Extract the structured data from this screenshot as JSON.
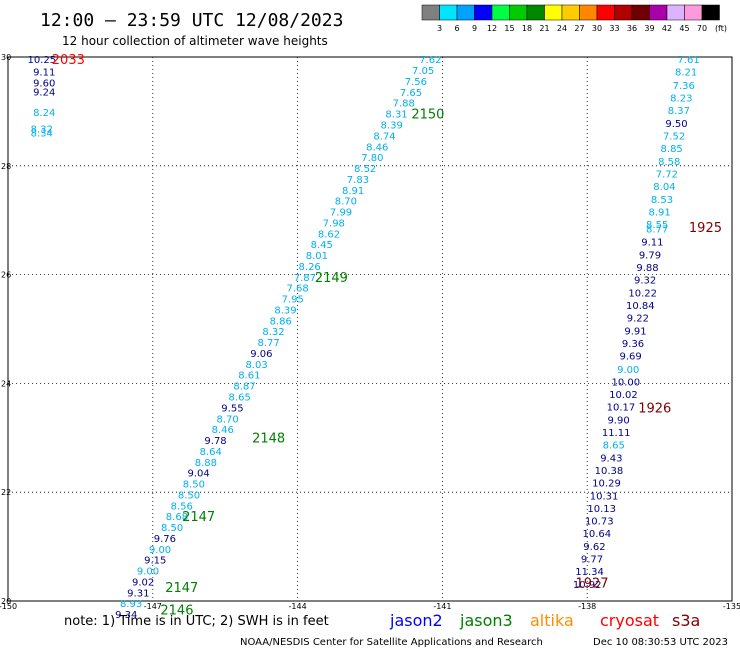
{
  "header": {
    "title": "12:00 — 23:59 UTC 12/08/2023",
    "subtitle": "12 hour collection of altimeter wave heights"
  },
  "legend": {
    "unit": "(ft)",
    "bins": [
      {
        "label": "3",
        "color": "#808080"
      },
      {
        "label": "6",
        "color": "#00e5ff"
      },
      {
        "label": "9",
        "color": "#00a2ff"
      },
      {
        "label": "12",
        "color": "#0000ff"
      },
      {
        "label": "15",
        "color": "#00ff44"
      },
      {
        "label": "18",
        "color": "#00cc00"
      },
      {
        "label": "21",
        "color": "#008800"
      },
      {
        "label": "24",
        "color": "#ffff00"
      },
      {
        "label": "27",
        "color": "#ffcc00"
      },
      {
        "label": "30",
        "color": "#ff8800"
      },
      {
        "label": "33",
        "color": "#ff0000"
      },
      {
        "label": "36",
        "color": "#b20000"
      },
      {
        "label": "39",
        "color": "#700000"
      },
      {
        "label": "42",
        "color": "#aa00aa"
      },
      {
        "label": "45",
        "color": "#ddb3ff"
      },
      {
        "label": "70",
        "color": "#ff99dd"
      },
      {
        "label": "",
        "color": "#000000"
      }
    ]
  },
  "chart_data": {
    "type": "scatter",
    "xlim": [
      -150,
      -135
    ],
    "ylim": [
      20,
      30
    ],
    "x_ticks": [
      "-150",
      "-147",
      "-144",
      "-141",
      "-138",
      "-135"
    ],
    "y_ticks": [
      "20",
      "22",
      "24",
      "26",
      "28",
      "30"
    ],
    "grid": true,
    "colors": {
      "sky": "#00b0f0",
      "navy": "#00008b",
      "green": "#008000",
      "red": "#ff0000",
      "darkred": "#800000"
    },
    "tracks": [
      {
        "points": [
          {
            "x": -149.3,
            "y": 29.95,
            "v": "10.25",
            "c": "navy"
          },
          {
            "x": -149.25,
            "y": 29.72,
            "v": "9.11",
            "c": "navy"
          },
          {
            "x": -149.25,
            "y": 29.52,
            "v": "9.60",
            "c": "navy"
          },
          {
            "x": -149.25,
            "y": 29.36,
            "v": "9.24",
            "c": "navy"
          },
          {
            "x": -149.25,
            "y": 28.98,
            "v": "8.24",
            "c": "sky"
          },
          {
            "x": -149.3,
            "y": 28.68,
            "v": "8.32",
            "c": "sky"
          },
          {
            "x": -149.3,
            "y": 28.6,
            "v": "8.34",
            "c": "sky"
          }
        ]
      },
      {
        "points": [
          {
            "x": -141.25,
            "y": 29.95,
            "v": "7.62",
            "c": "sky"
          },
          {
            "x": -141.4,
            "y": 29.75,
            "v": "7.05",
            "c": "sky"
          },
          {
            "x": -141.55,
            "y": 29.55,
            "v": "7.56",
            "c": "sky"
          },
          {
            "x": -141.65,
            "y": 29.35,
            "v": "7.65",
            "c": "sky"
          },
          {
            "x": -141.8,
            "y": 29.15,
            "v": "7.88",
            "c": "sky"
          },
          {
            "x": -141.95,
            "y": 28.95,
            "v": "8.31",
            "c": "sky"
          },
          {
            "x": -142.05,
            "y": 28.75,
            "v": "8.39",
            "c": "sky"
          },
          {
            "x": -142.2,
            "y": 28.55,
            "v": "8.74",
            "c": "sky"
          },
          {
            "x": -142.35,
            "y": 28.35,
            "v": "8.46",
            "c": "sky"
          },
          {
            "x": -142.45,
            "y": 28.15,
            "v": "7.80",
            "c": "sky"
          },
          {
            "x": -142.6,
            "y": 27.95,
            "v": "8.52",
            "c": "sky"
          },
          {
            "x": -142.75,
            "y": 27.75,
            "v": "7.83",
            "c": "sky"
          },
          {
            "x": -142.85,
            "y": 27.55,
            "v": "8.91",
            "c": "sky"
          },
          {
            "x": -143.0,
            "y": 27.35,
            "v": "8.70",
            "c": "sky"
          },
          {
            "x": -143.1,
            "y": 27.15,
            "v": "7.99",
            "c": "sky"
          },
          {
            "x": -143.25,
            "y": 26.95,
            "v": "7.98",
            "c": "sky"
          },
          {
            "x": -143.35,
            "y": 26.75,
            "v": "8.62",
            "c": "sky"
          },
          {
            "x": -143.5,
            "y": 26.55,
            "v": "8.45",
            "c": "sky"
          },
          {
            "x": -143.6,
            "y": 26.35,
            "v": "8.01",
            "c": "sky"
          },
          {
            "x": -143.75,
            "y": 26.15,
            "v": "8.26",
            "c": "sky"
          },
          {
            "x": -143.85,
            "y": 25.95,
            "v": "7.87",
            "c": "sky"
          },
          {
            "x": -144.0,
            "y": 25.75,
            "v": "7.68",
            "c": "sky"
          },
          {
            "x": -144.1,
            "y": 25.55,
            "v": "7.95",
            "c": "sky"
          },
          {
            "x": -144.25,
            "y": 25.35,
            "v": "8.39",
            "c": "sky"
          },
          {
            "x": -144.35,
            "y": 25.15,
            "v": "8.86",
            "c": "sky"
          },
          {
            "x": -144.5,
            "y": 24.95,
            "v": "8.32",
            "c": "sky"
          },
          {
            "x": -144.6,
            "y": 24.75,
            "v": "8.77",
            "c": "sky"
          },
          {
            "x": -144.75,
            "y": 24.55,
            "v": "9.06",
            "c": "navy"
          },
          {
            "x": -144.85,
            "y": 24.35,
            "v": "8.03",
            "c": "sky"
          },
          {
            "x": -145.0,
            "y": 24.15,
            "v": "8.61",
            "c": "sky"
          },
          {
            "x": -145.1,
            "y": 23.95,
            "v": "8.87",
            "c": "sky"
          },
          {
            "x": -145.2,
            "y": 23.75,
            "v": "8.65",
            "c": "sky"
          },
          {
            "x": -145.35,
            "y": 23.55,
            "v": "9.55",
            "c": "navy"
          },
          {
            "x": -145.45,
            "y": 23.35,
            "v": "8.70",
            "c": "sky"
          },
          {
            "x": -145.55,
            "y": 23.15,
            "v": "8.46",
            "c": "sky"
          },
          {
            "x": -145.7,
            "y": 22.95,
            "v": "9.78",
            "c": "navy"
          },
          {
            "x": -145.8,
            "y": 22.75,
            "v": "8.64",
            "c": "sky"
          },
          {
            "x": -145.9,
            "y": 22.55,
            "v": "8.88",
            "c": "sky"
          },
          {
            "x": -146.05,
            "y": 22.35,
            "v": "9.04",
            "c": "navy"
          },
          {
            "x": -146.15,
            "y": 22.15,
            "v": "8.50",
            "c": "sky"
          },
          {
            "x": -146.25,
            "y": 21.95,
            "v": "8.50",
            "c": "sky"
          },
          {
            "x": -146.4,
            "y": 21.75,
            "v": "8.56",
            "c": "sky"
          },
          {
            "x": -146.5,
            "y": 21.55,
            "v": "8.68",
            "c": "sky"
          },
          {
            "x": -146.6,
            "y": 21.35,
            "v": "8.50",
            "c": "sky"
          },
          {
            "x": -146.75,
            "y": 21.15,
            "v": "9.76",
            "c": "navy"
          },
          {
            "x": -146.85,
            "y": 20.95,
            "v": "9.00",
            "c": "sky"
          },
          {
            "x": -146.95,
            "y": 20.75,
            "v": "9.15",
            "c": "navy"
          },
          {
            "x": -147.1,
            "y": 20.55,
            "v": "9.00",
            "c": "sky"
          },
          {
            "x": -147.2,
            "y": 20.35,
            "v": "9.02",
            "c": "navy"
          },
          {
            "x": -147.3,
            "y": 20.15,
            "v": "9.31",
            "c": "navy"
          },
          {
            "x": -147.45,
            "y": 19.95,
            "v": "8.93",
            "c": "sky"
          },
          {
            "x": -147.55,
            "y": 19.75,
            "v": "9.34",
            "c": "navy"
          }
        ]
      },
      {
        "points": [
          {
            "x": -135.9,
            "y": 29.95,
            "v": "7.61",
            "c": "sky"
          },
          {
            "x": -135.95,
            "y": 29.72,
            "v": "8.21",
            "c": "sky"
          },
          {
            "x": -136.0,
            "y": 29.48,
            "v": "7.36",
            "c": "sky"
          },
          {
            "x": -136.05,
            "y": 29.25,
            "v": "8.23",
            "c": "sky"
          },
          {
            "x": -136.1,
            "y": 29.02,
            "v": "8.37",
            "c": "sky"
          },
          {
            "x": -136.15,
            "y": 28.78,
            "v": "9.50",
            "c": "navy"
          },
          {
            "x": -136.2,
            "y": 28.55,
            "v": "7.52",
            "c": "sky"
          },
          {
            "x": -136.25,
            "y": 28.32,
            "v": "8.85",
            "c": "sky"
          },
          {
            "x": -136.3,
            "y": 28.08,
            "v": "8.58",
            "c": "sky"
          },
          {
            "x": -136.35,
            "y": 27.85,
            "v": "7.72",
            "c": "sky"
          },
          {
            "x": -136.4,
            "y": 27.62,
            "v": "8.04",
            "c": "sky"
          },
          {
            "x": -136.45,
            "y": 27.38,
            "v": "8.53",
            "c": "sky"
          },
          {
            "x": -136.5,
            "y": 27.15,
            "v": "8.91",
            "c": "sky"
          },
          {
            "x": -136.55,
            "y": 26.92,
            "v": "8.55",
            "c": "sky"
          },
          {
            "x": -136.55,
            "y": 26.84,
            "v": "8.77",
            "c": "sky"
          },
          {
            "x": -136.65,
            "y": 26.6,
            "v": "9.11",
            "c": "navy"
          },
          {
            "x": -136.7,
            "y": 26.36,
            "v": "9.79",
            "c": "navy"
          },
          {
            "x": -136.75,
            "y": 26.13,
            "v": "9.88",
            "c": "navy"
          },
          {
            "x": -136.8,
            "y": 25.9,
            "v": "9.32",
            "c": "navy"
          },
          {
            "x": -136.85,
            "y": 25.66,
            "v": "10.22",
            "c": "navy"
          },
          {
            "x": -136.9,
            "y": 25.43,
            "v": "10.84",
            "c": "navy"
          },
          {
            "x": -136.95,
            "y": 25.2,
            "v": "9.22",
            "c": "navy"
          },
          {
            "x": -137.0,
            "y": 24.96,
            "v": "9.91",
            "c": "navy"
          },
          {
            "x": -137.05,
            "y": 24.73,
            "v": "9.36",
            "c": "navy"
          },
          {
            "x": -137.1,
            "y": 24.5,
            "v": "9.69",
            "c": "navy"
          },
          {
            "x": -137.15,
            "y": 24.26,
            "v": "9.00",
            "c": "sky"
          },
          {
            "x": -137.2,
            "y": 24.03,
            "v": "10.00",
            "c": "navy"
          },
          {
            "x": -137.25,
            "y": 23.8,
            "v": "10.02",
            "c": "navy"
          },
          {
            "x": -137.3,
            "y": 23.57,
            "v": "10.17",
            "c": "navy"
          },
          {
            "x": -137.35,
            "y": 23.33,
            "v": "9.90",
            "c": "navy"
          },
          {
            "x": -137.4,
            "y": 23.1,
            "v": "11.11",
            "c": "navy"
          },
          {
            "x": -137.45,
            "y": 22.87,
            "v": "8.65",
            "c": "sky"
          },
          {
            "x": -137.5,
            "y": 22.63,
            "v": "9.43",
            "c": "navy"
          },
          {
            "x": -137.55,
            "y": 22.4,
            "v": "10.38",
            "c": "navy"
          },
          {
            "x": -137.6,
            "y": 22.17,
            "v": "10.29",
            "c": "navy"
          },
          {
            "x": -137.65,
            "y": 21.93,
            "v": "10.31",
            "c": "navy"
          },
          {
            "x": -137.7,
            "y": 21.7,
            "v": "10.13",
            "c": "navy"
          },
          {
            "x": -137.75,
            "y": 21.47,
            "v": "10.73",
            "c": "navy"
          },
          {
            "x": -137.8,
            "y": 21.24,
            "v": "10.64",
            "c": "navy"
          },
          {
            "x": -137.85,
            "y": 21.0,
            "v": "9.62",
            "c": "navy"
          },
          {
            "x": -137.9,
            "y": 20.77,
            "v": "9.77",
            "c": "navy"
          },
          {
            "x": -137.95,
            "y": 20.54,
            "v": "11.34",
            "c": "navy"
          },
          {
            "x": -138.0,
            "y": 20.3,
            "v": "10.92",
            "c": "navy"
          }
        ]
      }
    ],
    "pass_labels": [
      {
        "x": -148.75,
        "y": 29.95,
        "text": "2033",
        "c": "red"
      },
      {
        "x": -141.3,
        "y": 28.95,
        "text": "2150",
        "c": "green"
      },
      {
        "x": -143.3,
        "y": 25.95,
        "text": "2149",
        "c": "green"
      },
      {
        "x": -144.6,
        "y": 23.0,
        "text": "2148",
        "c": "green"
      },
      {
        "x": -146.05,
        "y": 21.55,
        "text": "2147",
        "c": "green"
      },
      {
        "x": -146.4,
        "y": 20.25,
        "text": "2147",
        "c": "green"
      },
      {
        "x": -146.5,
        "y": 19.83,
        "text": "2146",
        "c": "green"
      },
      {
        "x": -135.55,
        "y": 26.87,
        "text": "1925",
        "c": "darkred"
      },
      {
        "x": -136.6,
        "y": 23.55,
        "text": "1926",
        "c": "darkred"
      },
      {
        "x": -137.9,
        "y": 20.33,
        "text": "1927",
        "c": "darkred"
      }
    ]
  },
  "footer": {
    "note": "note: 1) Time is in UTC; 2) SWH is in feet",
    "satellites": [
      {
        "name": "jason2",
        "color": "#0000ff"
      },
      {
        "name": "jason3",
        "color": "#008000"
      },
      {
        "name": "altika",
        "color": "#ff8c00"
      },
      {
        "name": "cryosat",
        "color": "#ff0000"
      },
      {
        "name": "s3a",
        "color": "#800000"
      }
    ],
    "credit": "NOAA/NESDIS Center for Satellite Applications and Research",
    "timestamp": "Dec 10 08:30:53 UTC 2023"
  }
}
